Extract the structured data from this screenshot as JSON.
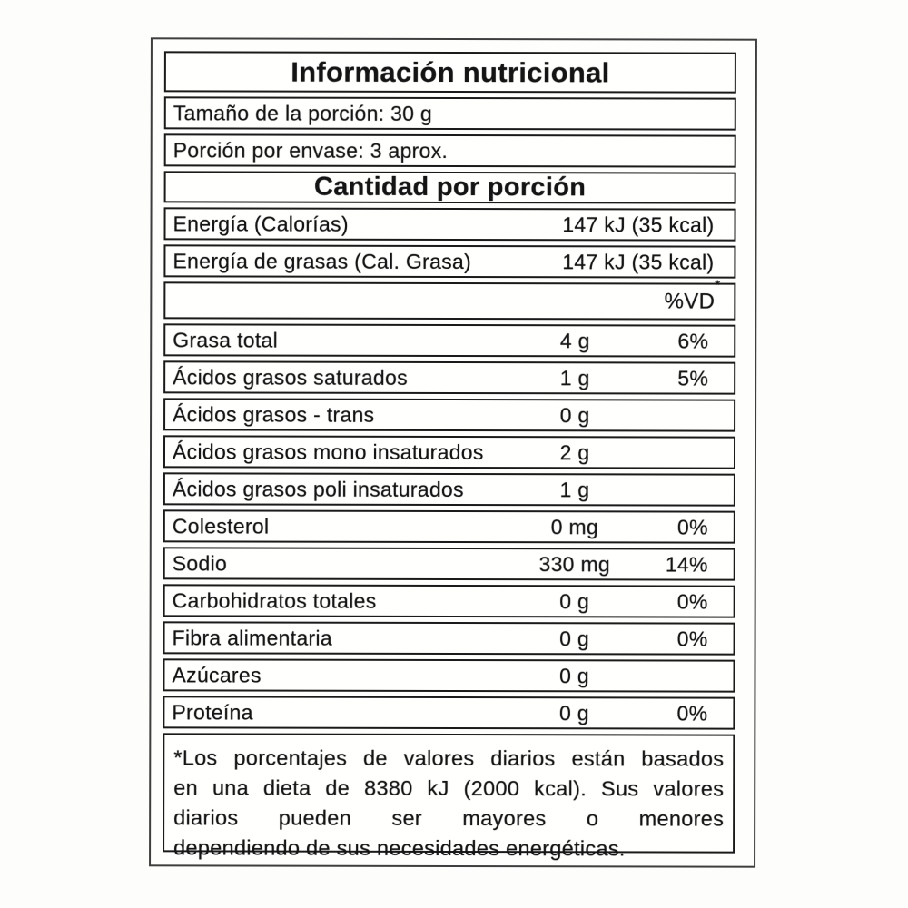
{
  "label": {
    "title": "Información nutricional",
    "serving_size": "Tamaño de la porción: 30 g",
    "servings_per_container": "Porción por envase: 3 aprox.",
    "amount_header": "Cantidad por porción",
    "energy_rows": [
      {
        "name": "Energía (Calorías)",
        "value": "147 kJ (35 kcal)"
      },
      {
        "name": "Energía de grasas (Cal. Grasa)",
        "value": "147 kJ (35 kcal)"
      }
    ],
    "dv_header": "%VD",
    "dv_header_mark": "*",
    "nutrient_rows": [
      {
        "name": "Grasa total",
        "value": "4 g",
        "dv": "6%"
      },
      {
        "name": "Ácidos grasos saturados",
        "value": "1 g",
        "dv": "5%"
      },
      {
        "name": "Ácidos grasos - trans",
        "value": "0 g",
        "dv": ""
      },
      {
        "name": "Ácidos grasos mono insaturados",
        "value": "2 g",
        "dv": ""
      },
      {
        "name": "Ácidos grasos poli insaturados",
        "value": "1 g",
        "dv": ""
      },
      {
        "name": "Colesterol",
        "value": "0 mg",
        "dv": "0%"
      },
      {
        "name": "Sodio",
        "value": "330 mg",
        "dv": "14%"
      },
      {
        "name": "Carbohidratos totales",
        "value": "0 g",
        "dv": "0%"
      },
      {
        "name": "Fibra alimentaria",
        "value": "0 g",
        "dv": "0%"
      },
      {
        "name": "Azúcares",
        "value": "0 g",
        "dv": ""
      },
      {
        "name": "Proteína",
        "value": "0 g",
        "dv": "0%"
      }
    ],
    "footnote_lines": [
      "*Los porcentajes de valores diarios están basados",
      "en una dieta de 8380 kJ (2000 kcal). Sus valores",
      "diarios pueden ser mayores o menores",
      "dependiendo de sus necesidades energéticas."
    ]
  }
}
